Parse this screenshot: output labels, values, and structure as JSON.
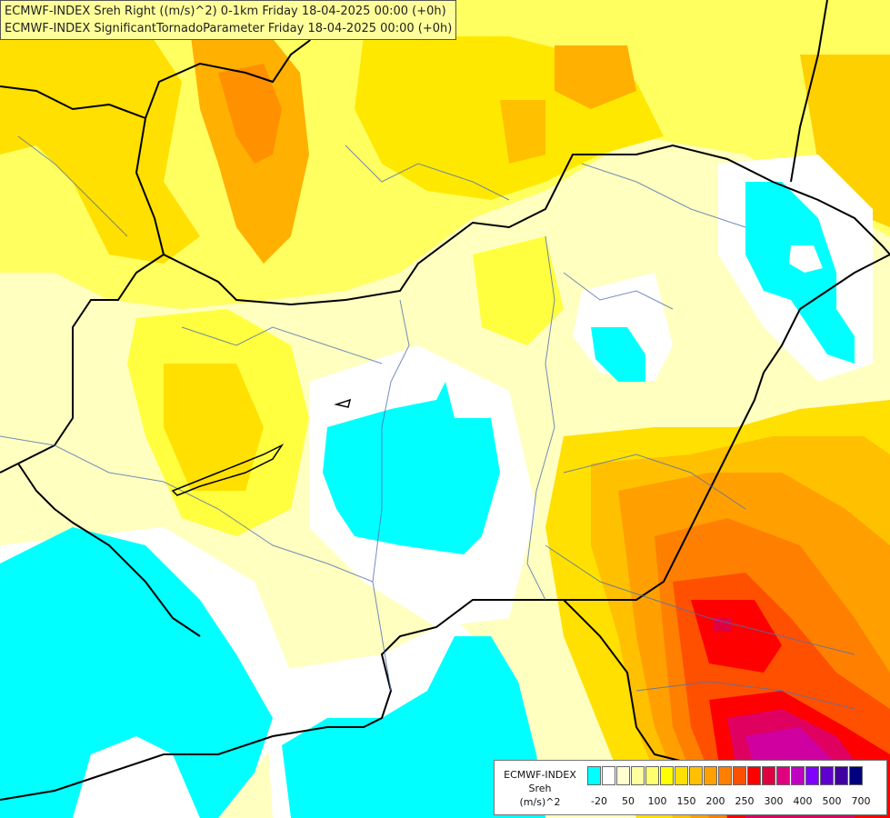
{
  "titles": [
    "ECMWF-INDEX Sreh Right ((m/s)^2) 0-1km Friday 18-04-2025 00:00 (+0h)",
    "ECMWF-INDEX SignificantTornadoParameter Friday 18-04-2025 00:00 (+0h)"
  ],
  "legend": {
    "line1": "ECMWF-INDEX",
    "line2": "Sreh",
    "line3": "(m/s)^2",
    "colors": [
      "#00ffff",
      "#ffffff",
      "#ffffd0",
      "#ffffa0",
      "#ffff70",
      "#ffff00",
      "#ffe000",
      "#ffc000",
      "#ffa000",
      "#ff8000",
      "#ff5000",
      "#ff0000",
      "#e00040",
      "#e00080",
      "#c000c0",
      "#8000ff",
      "#6000d0",
      "#4000a0",
      "#000080"
    ],
    "ticks": [
      "-20",
      "50",
      "100",
      "150",
      "200",
      "250",
      "300",
      "400",
      "500",
      "700"
    ]
  },
  "icons": {
    "map": "weather-map"
  }
}
